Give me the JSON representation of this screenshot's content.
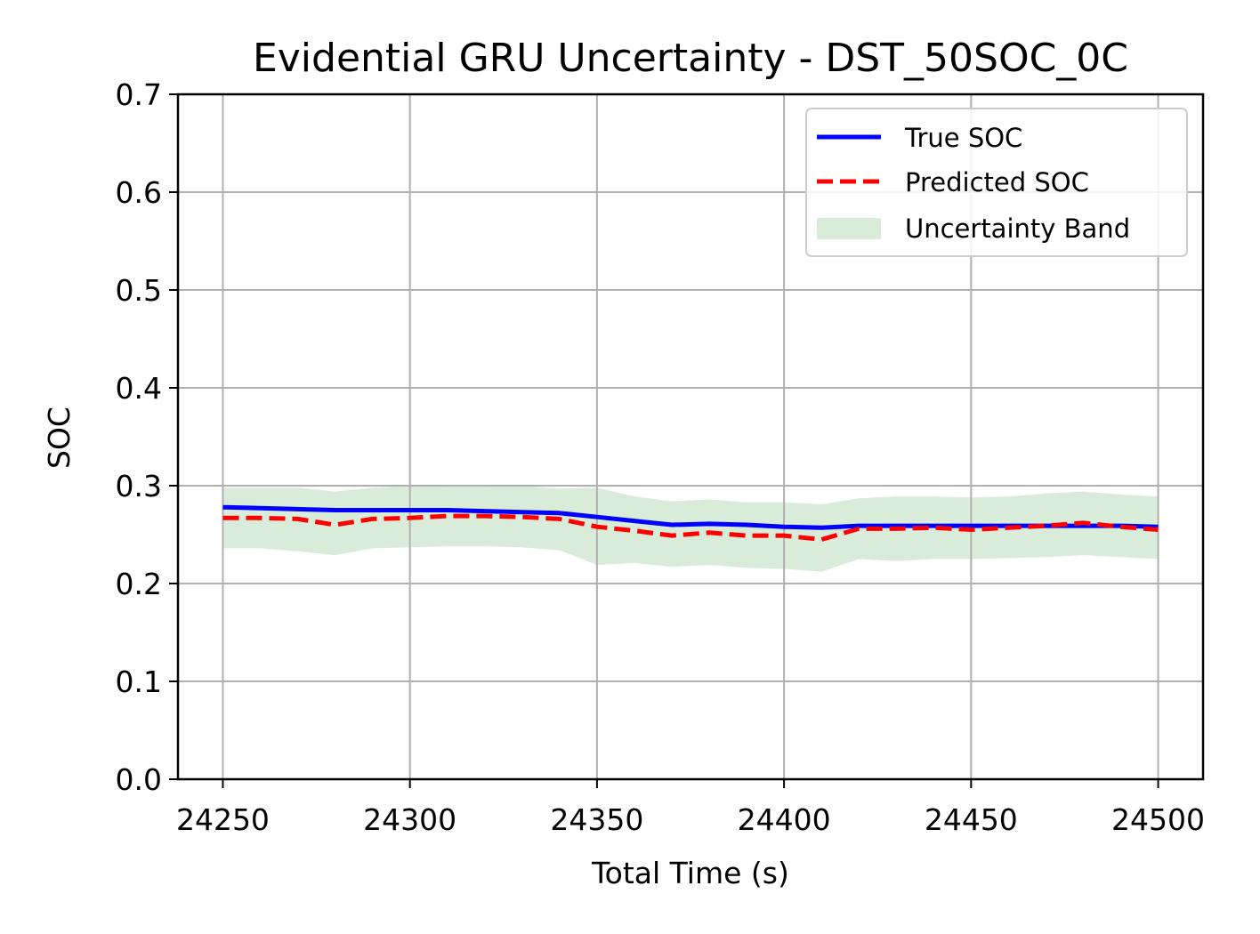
{
  "chart_data": {
    "type": "line",
    "title": "Evidential GRU Uncertainty - DST_50SOC_0C",
    "xlabel": "Total Time (s)",
    "ylabel": "SOC",
    "xlim": [
      24238,
      24512
    ],
    "ylim": [
      0.0,
      0.7
    ],
    "xticks": [
      24250,
      24300,
      24350,
      24400,
      24450,
      24500
    ],
    "xtick_labels": [
      "24250",
      "24300",
      "24350",
      "24400",
      "24450",
      "24500"
    ],
    "yticks": [
      0.0,
      0.1,
      0.2,
      0.3,
      0.4,
      0.5,
      0.6,
      0.7
    ],
    "ytick_labels": [
      "0.0",
      "0.1",
      "0.2",
      "0.3",
      "0.4",
      "0.5",
      "0.6",
      "0.7"
    ],
    "grid": true,
    "legend_position": "top-right",
    "x": [
      24250,
      24260,
      24270,
      24280,
      24290,
      24300,
      24310,
      24320,
      24330,
      24340,
      24350,
      24360,
      24370,
      24380,
      24390,
      24400,
      24410,
      24420,
      24430,
      24440,
      24450,
      24460,
      24470,
      24480,
      24490,
      24500
    ],
    "series": [
      {
        "name": "True SOC",
        "color": "#0000ff",
        "style": "solid",
        "values": [
          0.278,
          0.277,
          0.276,
          0.275,
          0.275,
          0.275,
          0.275,
          0.274,
          0.273,
          0.272,
          0.268,
          0.264,
          0.26,
          0.261,
          0.26,
          0.258,
          0.257,
          0.259,
          0.259,
          0.259,
          0.259,
          0.259,
          0.259,
          0.259,
          0.259,
          0.258
        ]
      },
      {
        "name": "Predicted SOC",
        "color": "#ff0000",
        "style": "dashed",
        "values": [
          0.267,
          0.267,
          0.266,
          0.26,
          0.266,
          0.267,
          0.269,
          0.269,
          0.268,
          0.266,
          0.258,
          0.254,
          0.249,
          0.252,
          0.249,
          0.249,
          0.245,
          0.256,
          0.256,
          0.257,
          0.255,
          0.257,
          0.259,
          0.262,
          0.258,
          0.255
        ]
      },
      {
        "name": "Uncertainty Band",
        "color": "#d9ecd9",
        "style": "band",
        "upper": [
          0.298,
          0.298,
          0.298,
          0.294,
          0.298,
          0.3,
          0.301,
          0.301,
          0.3,
          0.297,
          0.298,
          0.289,
          0.284,
          0.286,
          0.283,
          0.283,
          0.281,
          0.287,
          0.289,
          0.289,
          0.288,
          0.289,
          0.292,
          0.294,
          0.291,
          0.289
        ],
        "lower": [
          0.236,
          0.236,
          0.233,
          0.229,
          0.236,
          0.237,
          0.238,
          0.238,
          0.237,
          0.234,
          0.219,
          0.221,
          0.217,
          0.219,
          0.216,
          0.215,
          0.212,
          0.225,
          0.223,
          0.225,
          0.225,
          0.226,
          0.227,
          0.229,
          0.227,
          0.225
        ]
      }
    ]
  }
}
